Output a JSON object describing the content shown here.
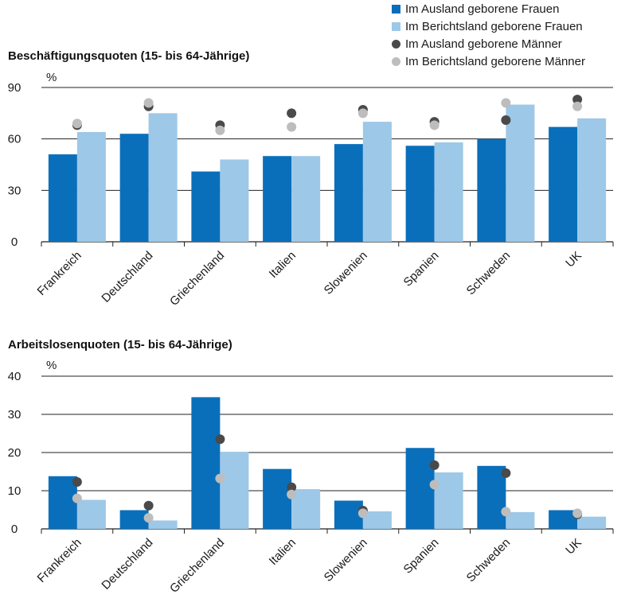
{
  "colors": {
    "foreign_women": "#0a6fba",
    "native_women": "#9dc8e8",
    "foreign_men": "#4a4a4a",
    "native_men": "#bdbdbd"
  },
  "legend": [
    {
      "label": "Im Ausland geborene Frauen",
      "kind": "square",
      "color": "#0a6fba"
    },
    {
      "label": "Im Berichtsland geborene Frauen",
      "kind": "square",
      "color": "#9dc8e8"
    },
    {
      "label": "Im Ausland geborene Männer",
      "kind": "dot",
      "color": "#4a4a4a"
    },
    {
      "label": "Im Berichtsland geborene Männer",
      "kind": "dot",
      "color": "#bdbdbd"
    }
  ],
  "chart_data": [
    {
      "type": "bar",
      "title": "Beschäftigungsquoten (15- bis 64-Jährige)",
      "ylabel": "%",
      "ylim": [
        0,
        90
      ],
      "yticks": [
        0,
        30,
        60,
        90
      ],
      "grid": true,
      "categories": [
        "Frankreich",
        "Deutschland",
        "Griechenland",
        "Italien",
        "Slowenien",
        "Spanien",
        "Schweden",
        "UK"
      ],
      "series": [
        {
          "name": "Im Ausland geborene Frauen",
          "mark": "bar",
          "values": [
            51,
            63,
            41,
            50,
            57,
            56,
            60,
            67
          ]
        },
        {
          "name": "Im Berichtsland geborene Frauen",
          "mark": "bar",
          "values": [
            64,
            75,
            48,
            50,
            70,
            58,
            80,
            72
          ]
        },
        {
          "name": "Im Ausland geborene Männer",
          "mark": "dot",
          "values": [
            68,
            79,
            68,
            75,
            77,
            70,
            71,
            83
          ]
        },
        {
          "name": "Im Berichtsland geborene Männer",
          "mark": "dot",
          "values": [
            69,
            81,
            65,
            67,
            75,
            68,
            81,
            79
          ]
        }
      ]
    },
    {
      "type": "bar",
      "title": "Arbeitslosenquoten (15- bis 64-Jährige)",
      "ylabel": "%",
      "ylim": [
        0,
        40
      ],
      "yticks": [
        0,
        10,
        20,
        30,
        40
      ],
      "grid": true,
      "categories": [
        "Frankreich",
        "Deutschland",
        "Griechenland",
        "Italien",
        "Slowenien",
        "Spanien",
        "Schweden",
        "UK"
      ],
      "series": [
        {
          "name": "Im Ausland geborene Frauen",
          "mark": "bar",
          "values": [
            13.8,
            4.9,
            34.5,
            15.7,
            7.4,
            21.2,
            16.5,
            4.9
          ]
        },
        {
          "name": "Im Berichtsland geborene Frauen",
          "mark": "bar",
          "values": [
            7.6,
            2.2,
            20.2,
            10.4,
            4.6,
            14.8,
            4.4,
            3.2
          ]
        },
        {
          "name": "Im Ausland geborene Männer",
          "mark": "dot",
          "values": [
            12.3,
            6.1,
            23.5,
            10.9,
            4.8,
            16.7,
            14.6,
            3.8
          ]
        },
        {
          "name": "Im Berichtsland geborene Männer",
          "mark": "dot",
          "values": [
            8.0,
            2.9,
            13.2,
            9.0,
            4.1,
            11.6,
            4.5,
            4.1
          ]
        }
      ]
    }
  ]
}
